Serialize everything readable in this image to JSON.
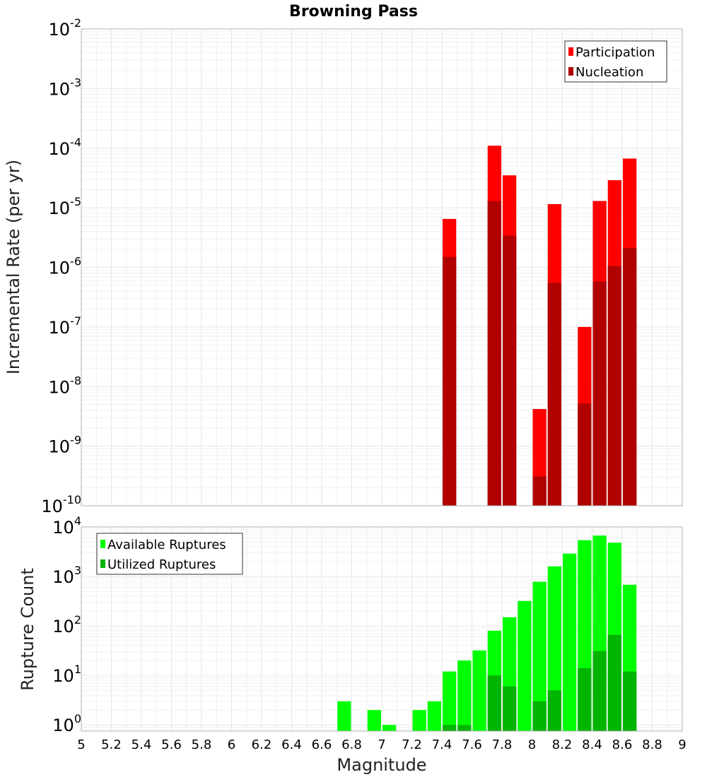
{
  "chart_data": [
    {
      "type": "bar",
      "title": "Browning Pass",
      "xlabel": "",
      "ylabel": "Incremental Rate (per yr)",
      "yscale": "log",
      "ylim": [
        1e-10,
        0.01
      ],
      "xlim": [
        5,
        9
      ],
      "bar_width": 0.1,
      "legend_position": "top-right",
      "series": [
        {
          "name": "Participation",
          "color": "#ff0000",
          "points": [
            {
              "x": 7.45,
              "y": 6.5e-06
            },
            {
              "x": 7.75,
              "y": 0.00011
            },
            {
              "x": 7.85,
              "y": 3.5e-05
            },
            {
              "x": 8.05,
              "y": 4.2e-09
            },
            {
              "x": 8.15,
              "y": 1.15e-05
            },
            {
              "x": 8.35,
              "y": 1e-07
            },
            {
              "x": 8.45,
              "y": 1.3e-05
            },
            {
              "x": 8.55,
              "y": 2.9e-05
            },
            {
              "x": 8.65,
              "y": 6.7e-05
            }
          ]
        },
        {
          "name": "Nucleation",
          "color": "#b00000",
          "points": [
            {
              "x": 7.45,
              "y": 1.5e-06
            },
            {
              "x": 7.75,
              "y": 1.3e-05
            },
            {
              "x": 7.85,
              "y": 3.4e-06
            },
            {
              "x": 8.05,
              "y": 3.1e-10
            },
            {
              "x": 8.15,
              "y": 5.5e-07
            },
            {
              "x": 8.35,
              "y": 5.2e-09
            },
            {
              "x": 8.45,
              "y": 5.8e-07
            },
            {
              "x": 8.55,
              "y": 1.05e-06
            },
            {
              "x": 8.65,
              "y": 2.1e-06
            }
          ]
        }
      ]
    },
    {
      "type": "bar",
      "title": "",
      "xlabel": "Magnitude",
      "ylabel": "Rupture Count",
      "yscale": "log",
      "ylim": [
        0.75,
        10000
      ],
      "xlim": [
        5,
        9
      ],
      "bar_width": 0.1,
      "legend_position": "top-left",
      "xticks": [
        "5",
        "5.2",
        "5.4",
        "5.6",
        "5.8",
        "6",
        "6.2",
        "6.4",
        "6.6",
        "6.8",
        "7",
        "7.2",
        "7.4",
        "7.6",
        "7.8",
        "8",
        "8.2",
        "8.4",
        "8.6",
        "8.8",
        "9"
      ],
      "series": [
        {
          "name": "Available Ruptures",
          "color": "#00ff00",
          "points": [
            {
              "x": 6.75,
              "y": 3
            },
            {
              "x": 6.95,
              "y": 2
            },
            {
              "x": 7.05,
              "y": 1
            },
            {
              "x": 7.25,
              "y": 2
            },
            {
              "x": 7.35,
              "y": 3
            },
            {
              "x": 7.45,
              "y": 12
            },
            {
              "x": 7.55,
              "y": 20
            },
            {
              "x": 7.65,
              "y": 32
            },
            {
              "x": 7.75,
              "y": 80
            },
            {
              "x": 7.85,
              "y": 150
            },
            {
              "x": 7.95,
              "y": 320
            },
            {
              "x": 8.05,
              "y": 780
            },
            {
              "x": 8.15,
              "y": 1600
            },
            {
              "x": 8.25,
              "y": 2900
            },
            {
              "x": 8.35,
              "y": 5400
            },
            {
              "x": 8.45,
              "y": 6700
            },
            {
              "x": 8.55,
              "y": 4800
            },
            {
              "x": 8.65,
              "y": 680
            }
          ]
        },
        {
          "name": "Utilized Ruptures",
          "color": "#00b400",
          "points": [
            {
              "x": 7.45,
              "y": 1
            },
            {
              "x": 7.55,
              "y": 1
            },
            {
              "x": 7.75,
              "y": 10
            },
            {
              "x": 7.85,
              "y": 6
            },
            {
              "x": 8.05,
              "y": 3
            },
            {
              "x": 8.15,
              "y": 5
            },
            {
              "x": 8.35,
              "y": 14
            },
            {
              "x": 8.45,
              "y": 31
            },
            {
              "x": 8.55,
              "y": 66
            },
            {
              "x": 8.65,
              "y": 12
            }
          ]
        }
      ]
    }
  ],
  "labels": {
    "top_yticks": [
      {
        "base": "10",
        "exp": "-2",
        "value": 0.01
      },
      {
        "base": "10",
        "exp": "-3",
        "value": 0.001
      },
      {
        "base": "10",
        "exp": "-4",
        "value": 0.0001
      },
      {
        "base": "10",
        "exp": "-5",
        "value": 1e-05
      },
      {
        "base": "10",
        "exp": "-6",
        "value": 1e-06
      },
      {
        "base": "10",
        "exp": "-7",
        "value": 1e-07
      },
      {
        "base": "10",
        "exp": "-8",
        "value": 1e-08
      },
      {
        "base": "10",
        "exp": "-9",
        "value": 1e-09
      },
      {
        "base": "10",
        "exp": "-10",
        "value": 1e-10
      }
    ],
    "bottom_yticks": [
      {
        "base": "10",
        "exp": "4",
        "value": 10000
      },
      {
        "base": "10",
        "exp": "3",
        "value": 1000
      },
      {
        "base": "10",
        "exp": "2",
        "value": 100
      },
      {
        "base": "10",
        "exp": "1",
        "value": 10
      },
      {
        "base": "10",
        "exp": "0",
        "value": 1
      }
    ]
  }
}
